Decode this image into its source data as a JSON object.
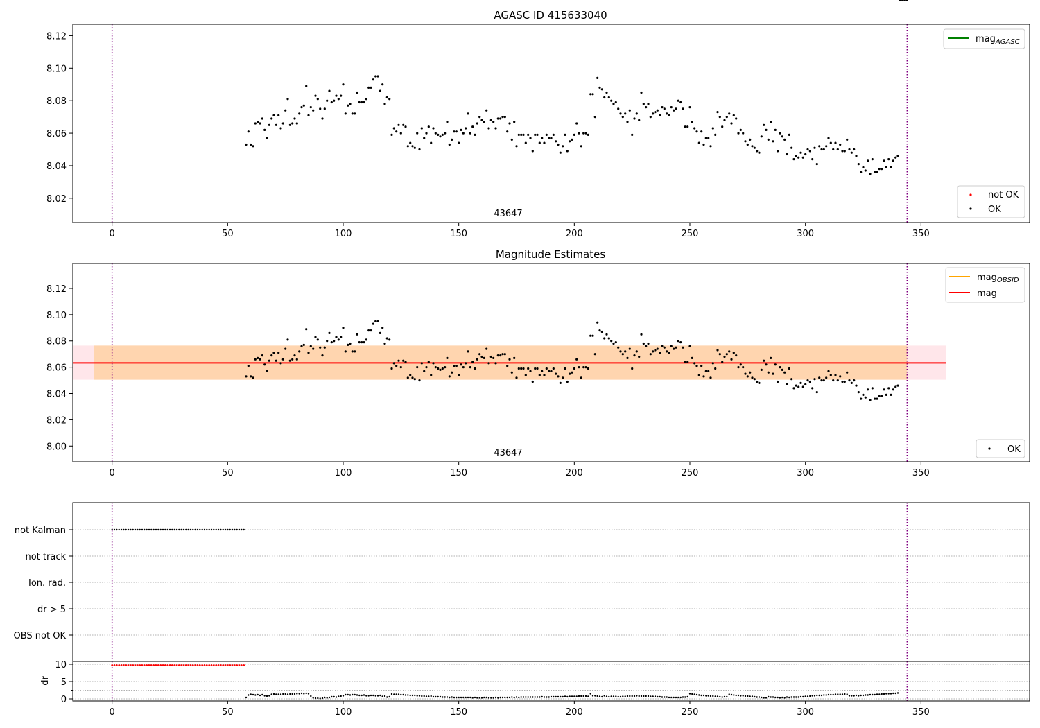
{
  "figure": {
    "background": "#ffffff"
  },
  "chart_data": [
    {
      "id": "top",
      "type": "scatter",
      "title": "AGASC ID 415633040",
      "obsid_label": "43647",
      "xlim": [
        -17,
        397
      ],
      "ylim": [
        8.005,
        8.127
      ],
      "x_ticks": [
        0,
        50,
        100,
        150,
        200,
        250,
        300,
        350
      ],
      "y_ticks": [
        8.02,
        8.04,
        8.06,
        8.08,
        8.1,
        8.12
      ],
      "y_tick_labels": [
        "8.02",
        "8.04",
        "8.06",
        "8.08",
        "8.10",
        "8.12"
      ],
      "vlines": [
        0,
        344
      ],
      "legend_upper": {
        "placement": "top-right",
        "entries": [
          {
            "label": "mag",
            "subscript": "AGASC",
            "color": "#008000",
            "kind": "line"
          }
        ]
      },
      "legend_lower": {
        "placement": "bottom-right",
        "entries": [
          {
            "label": "not OK",
            "color": "#ff0000",
            "kind": "dot"
          },
          {
            "label": "OK",
            "color": "#000000",
            "kind": "dot"
          }
        ]
      }
    },
    {
      "id": "middle",
      "type": "scatter",
      "title": "Magnitude Estimates",
      "obsid_label": "43647",
      "xlim": [
        -17,
        397
      ],
      "ylim": [
        7.988,
        8.139
      ],
      "x_ticks": [
        0,
        50,
        100,
        150,
        200,
        250,
        300,
        350
      ],
      "y_ticks": [
        8.0,
        8.02,
        8.04,
        8.06,
        8.08,
        8.1,
        8.12
      ],
      "y_tick_labels": [
        "8.00",
        "8.02",
        "8.04",
        "8.06",
        "8.08",
        "8.10",
        "8.12"
      ],
      "vlines": [
        0,
        344
      ],
      "mag_line": {
        "value": 8.0633,
        "x_range": [
          -17,
          361
        ],
        "color": "#ff0000"
      },
      "mag_band": {
        "low": 8.0505,
        "high": 8.0765,
        "x_range": [
          -17,
          361
        ],
        "color": "#ffc0cb"
      },
      "obsid_band": {
        "low": 8.0505,
        "high": 8.0765,
        "x_range": [
          -8,
          344
        ],
        "color": "#ffa500"
      },
      "legend_upper": {
        "placement": "top-right",
        "entries": [
          {
            "label": "mag",
            "subscript": "OBSID",
            "color": "#ffa500",
            "kind": "line"
          },
          {
            "label": "mag",
            "subscript": "",
            "color": "#ff0000",
            "kind": "line"
          }
        ]
      },
      "legend_lower": {
        "placement": "bottom-right",
        "entries": [
          {
            "label": "OK",
            "color": "#000000",
            "kind": "dot"
          }
        ]
      }
    },
    {
      "id": "flags",
      "type": "scatter",
      "xlim": [
        -17,
        397
      ],
      "categories": [
        "not Kalman",
        "not track",
        "Ion. rad.",
        "dr > 5",
        "OBS not OK"
      ],
      "vlines": [
        0,
        344
      ],
      "not_kalman_range": [
        0,
        57
      ],
      "point_spacing": 1
    },
    {
      "id": "dr",
      "type": "scatter",
      "xlim": [
        -17,
        397
      ],
      "ylim": [
        -0.6,
        10.8
      ],
      "ylabel": "dr",
      "x_ticks": [
        0,
        50,
        100,
        150,
        200,
        250,
        300,
        350
      ],
      "y_ticks": [
        0,
        5,
        10
      ],
      "y_tick_labels": [
        "0",
        "5",
        "10"
      ],
      "vlines": [
        0,
        344
      ],
      "capped_value": 9.7,
      "capped_range": [
        0,
        57
      ],
      "capped_color": "#ff0000"
    }
  ],
  "series": {
    "mag_x": [
      58,
      59,
      60,
      61,
      62,
      63,
      64,
      65,
      66,
      67,
      68,
      69,
      70,
      71,
      72,
      73,
      74,
      75,
      76,
      77,
      78,
      79,
      80,
      81,
      82,
      83,
      84,
      85,
      86,
      87,
      88,
      89,
      90,
      91,
      92,
      93,
      94,
      95,
      96,
      97,
      98,
      99,
      100,
      101,
      102,
      103,
      104,
      105,
      106,
      107,
      108,
      109,
      110,
      111,
      112,
      113,
      114,
      115,
      116,
      117,
      118,
      119,
      120,
      121,
      122,
      123,
      124,
      125,
      126,
      127,
      128,
      129,
      130,
      131,
      132,
      133,
      134,
      135,
      136,
      137,
      138,
      139,
      140,
      141,
      142,
      143,
      144,
      145,
      146,
      147,
      148,
      149,
      150,
      151,
      152,
      153,
      154,
      155,
      156,
      157,
      158,
      159,
      160,
      161,
      162,
      163,
      164,
      165,
      166,
      167,
      168,
      169,
      170,
      171,
      172,
      173,
      174,
      175,
      176,
      177,
      178,
      179,
      180,
      181,
      182,
      183,
      184,
      185,
      186,
      187,
      188,
      189,
      190,
      191,
      192,
      193,
      194,
      195,
      196,
      197,
      198,
      199,
      200,
      201,
      202,
      203,
      204,
      205,
      206,
      207,
      208,
      209,
      210,
      211,
      212,
      213,
      214,
      215,
      216,
      217,
      218,
      219,
      220,
      221,
      222,
      223,
      224,
      225,
      226,
      227,
      228,
      229,
      230,
      231,
      232,
      233,
      234,
      235,
      236,
      237,
      238,
      239,
      240,
      241,
      242,
      243,
      244,
      245,
      246,
      247,
      248,
      249,
      250,
      251,
      252,
      253,
      254,
      255,
      256,
      257,
      258,
      259,
      260,
      261,
      262,
      263,
      264,
      265,
      266,
      267,
      268,
      269,
      270,
      271,
      272,
      273,
      274,
      275,
      276,
      277,
      278,
      279,
      280,
      281,
      282,
      283,
      284,
      285,
      286,
      287,
      288,
      289,
      290,
      291,
      292,
      293,
      294,
      295,
      296,
      297,
      298,
      299,
      300,
      301,
      302,
      303,
      304,
      305,
      306,
      307,
      308,
      309,
      310,
      311,
      312,
      313,
      314,
      315,
      316,
      317,
      318,
      319,
      320,
      321,
      322,
      323,
      324,
      325,
      326,
      327,
      328,
      329,
      330,
      331,
      332,
      333,
      334,
      335,
      336,
      337,
      338,
      339,
      340,
      341,
      342,
      343,
      344
    ],
    "mag_y": [
      8.053,
      8.061,
      8.053,
      8.052,
      8.066,
      8.067,
      8.066,
      8.069,
      8.062,
      8.057,
      8.065,
      8.069,
      8.071,
      8.065,
      8.071,
      8.063,
      8.066,
      8.074,
      8.081,
      8.065,
      8.066,
      8.069,
      8.066,
      8.072,
      8.076,
      8.077,
      8.089,
      8.071,
      8.076,
      8.074,
      8.083,
      8.081,
      8.075,
      8.069,
      8.075,
      8.08,
      8.086,
      8.079,
      8.08,
      8.083,
      8.081,
      8.083,
      8.09,
      8.072,
      8.077,
      8.078,
      8.072,
      8.072,
      8.085,
      8.079,
      8.079,
      8.079,
      8.081,
      8.088,
      8.088,
      8.093,
      8.095,
      8.095,
      8.086,
      8.09,
      8.078,
      8.082,
      8.081,
      8.059,
      8.063,
      8.061,
      8.065,
      8.06,
      8.065,
      8.064,
      8.052,
      8.054,
      8.052,
      8.051,
      8.06,
      8.05,
      8.063,
      8.057,
      8.06,
      8.064,
      8.054,
      8.063,
      8.06,
      8.059,
      8.058,
      8.059,
      8.06,
      8.067,
      8.053,
      8.056,
      8.061,
      8.061,
      8.054,
      8.062,
      8.06,
      8.063,
      8.072,
      8.06,
      8.064,
      8.059,
      8.066,
      8.07,
      8.068,
      8.067,
      8.074,
      8.063,
      8.068,
      8.067,
      8.063,
      8.069,
      8.069,
      8.07,
      8.07,
      8.061,
      8.066,
      8.056,
      8.067,
      8.052,
      8.059,
      8.059,
      8.059,
      8.054,
      8.059,
      8.057,
      8.049,
      8.059,
      8.059,
      8.054,
      8.057,
      8.054,
      8.059,
      8.057,
      8.057,
      8.059,
      8.055,
      8.053,
      8.048,
      8.052,
      8.059,
      8.049,
      8.055,
      8.056,
      8.059,
      8.066,
      8.06,
      8.052,
      8.06,
      8.06,
      8.059,
      8.084,
      8.084,
      8.07,
      8.094,
      8.088,
      8.087,
      8.082,
      8.085,
      8.082,
      8.08,
      8.078,
      8.079,
      8.075,
      8.072,
      8.07,
      8.072,
      8.067,
      8.074,
      8.059,
      8.069,
      8.072,
      8.068,
      8.085,
      8.078,
      8.076,
      8.078,
      8.07,
      8.072,
      8.073,
      8.074,
      8.071,
      8.076,
      8.075,
      8.072,
      8.071,
      8.076,
      8.074,
      8.075,
      8.08,
      8.079,
      8.075,
      8.064,
      8.064,
      8.076,
      8.067,
      8.063,
      8.061,
      8.054,
      8.061,
      8.053,
      8.057,
      8.057,
      8.052,
      8.063,
      8.059,
      8.073,
      8.07,
      8.064,
      8.068,
      8.07,
      8.072,
      8.066,
      8.071,
      8.069,
      8.06,
      8.062,
      8.06,
      8.055,
      8.053,
      8.056,
      8.052,
      8.051,
      8.049,
      8.048,
      8.058,
      8.065,
      8.062,
      8.056,
      8.067,
      8.055,
      8.062,
      8.049,
      8.06,
      8.058,
      8.056,
      8.047,
      8.059,
      8.051,
      8.044,
      8.046,
      8.045,
      8.048,
      8.045,
      8.047,
      8.05,
      8.049,
      8.044,
      8.051,
      8.041,
      8.052,
      8.05,
      8.05,
      8.052,
      8.057,
      8.054,
      8.05,
      8.054,
      8.05,
      8.053,
      8.049,
      8.049,
      8.056,
      8.05,
      8.048,
      8.05,
      8.046,
      8.041,
      8.036,
      8.039,
      8.037,
      8.043,
      8.035,
      8.044,
      8.036,
      8.036,
      8.038,
      8.038,
      8.043,
      8.039,
      8.044,
      8.039,
      8.043,
      8.045,
      8.046
    ],
    "dr_x": [
      58,
      59,
      60,
      61,
      62,
      63,
      64,
      65,
      66,
      67,
      68,
      69,
      70,
      71,
      72,
      73,
      74,
      75,
      76,
      77,
      78,
      79,
      80,
      81,
      82,
      83,
      84,
      85,
      86,
      87,
      88,
      89,
      90,
      91,
      92,
      93,
      94,
      95,
      96,
      97,
      98,
      99,
      100,
      101,
      102,
      103,
      104,
      105,
      106,
      107,
      108,
      109,
      110,
      111,
      112,
      113,
      114,
      115,
      116,
      117,
      118,
      119,
      120,
      121,
      122,
      123,
      124,
      125,
      126,
      127,
      128,
      129,
      130,
      131,
      132,
      133,
      134,
      135,
      136,
      137,
      138,
      139,
      140,
      141,
      142,
      143,
      144,
      145,
      146,
      147,
      148,
      149,
      150,
      151,
      152,
      153,
      154,
      155,
      156,
      157,
      158,
      159,
      160,
      161,
      162,
      163,
      164,
      165,
      166,
      167,
      168,
      169,
      170,
      171,
      172,
      173,
      174,
      175,
      176,
      177,
      178,
      179,
      180,
      181,
      182,
      183,
      184,
      185,
      186,
      187,
      188,
      189,
      190,
      191,
      192,
      193,
      194,
      195,
      196,
      197,
      198,
      199,
      200,
      201,
      202,
      203,
      204,
      205,
      206,
      207,
      208,
      209,
      210,
      211,
      212,
      213,
      214,
      215,
      216,
      217,
      218,
      219,
      220,
      221,
      222,
      223,
      224,
      225,
      226,
      227,
      228,
      229,
      230,
      231,
      232,
      233,
      234,
      235,
      236,
      237,
      238,
      239,
      240,
      241,
      242,
      243,
      244,
      245,
      246,
      247,
      248,
      249,
      250,
      251,
      252,
      253,
      254,
      255,
      256,
      257,
      258,
      259,
      260,
      261,
      262,
      263,
      264,
      265,
      266,
      267,
      268,
      269,
      270,
      271,
      272,
      273,
      274,
      275,
      276,
      277,
      278,
      279,
      280,
      281,
      282,
      283,
      284,
      285,
      286,
      287,
      288,
      289,
      290,
      291,
      292,
      293,
      294,
      295,
      296,
      297,
      298,
      299,
      300,
      301,
      302,
      303,
      304,
      305,
      306,
      307,
      308,
      309,
      310,
      311,
      312,
      313,
      314,
      315,
      316,
      317,
      318,
      319,
      320,
      321,
      322,
      323,
      324,
      325,
      326,
      327,
      328,
      329,
      330,
      331,
      332,
      333,
      334,
      335,
      336,
      337,
      338,
      339,
      340,
      341,
      342,
      343,
      344
    ],
    "dr_y": [
      0.4,
      1.1,
      1.3,
      1.2,
      1.1,
      1.2,
      1.0,
      1.2,
      0.9,
      0.8,
      0.9,
      1.3,
      1.4,
      1.3,
      1.3,
      1.3,
      1.4,
      1.4,
      1.3,
      1.4,
      1.4,
      1.4,
      1.5,
      1.5,
      1.6,
      1.5,
      1.6,
      1.5,
      0.8,
      0.3,
      0.2,
      0.2,
      0.1,
      0.2,
      0.4,
      0.3,
      0.4,
      0.6,
      0.6,
      0.5,
      0.7,
      0.8,
      0.9,
      1.2,
      1.2,
      1.1,
      1.2,
      1.2,
      1.1,
      1.0,
      1.0,
      1.1,
      0.9,
      0.9,
      1.0,
      1.0,
      0.9,
      0.9,
      1.0,
      0.7,
      0.8,
      0.5,
      0.6,
      1.4,
      1.3,
      1.3,
      1.3,
      1.2,
      1.2,
      1.1,
      1.1,
      1.0,
      1.0,
      1.0,
      0.9,
      0.9,
      0.8,
      0.8,
      0.7,
      0.7,
      0.8,
      0.6,
      0.6,
      0.6,
      0.6,
      0.5,
      0.5,
      0.5,
      0.4,
      0.5,
      0.4,
      0.4,
      0.4,
      0.4,
      0.4,
      0.4,
      0.4,
      0.4,
      0.3,
      0.4,
      0.3,
      0.3,
      0.3,
      0.4,
      0.4,
      0.3,
      0.3,
      0.3,
      0.4,
      0.3,
      0.4,
      0.4,
      0.4,
      0.4,
      0.4,
      0.5,
      0.4,
      0.5,
      0.4,
      0.5,
      0.5,
      0.5,
      0.5,
      0.5,
      0.5,
      0.5,
      0.5,
      0.5,
      0.6,
      0.5,
      0.5,
      0.5,
      0.6,
      0.6,
      0.6,
      0.6,
      0.6,
      0.6,
      0.7,
      0.6,
      0.7,
      0.7,
      0.7,
      0.7,
      0.8,
      0.8,
      0.8,
      0.8,
      0.7,
      1.5,
      0.9,
      0.9,
      0.8,
      0.7,
      0.6,
      0.9,
      0.7,
      0.6,
      0.7,
      0.7,
      0.7,
      0.6,
      0.6,
      0.7,
      0.7,
      0.8,
      0.8,
      0.8,
      0.8,
      0.9,
      0.8,
      0.8,
      0.8,
      0.8,
      0.8,
      0.7,
      0.7,
      0.7,
      0.6,
      0.6,
      0.5,
      0.5,
      0.5,
      0.4,
      0.4,
      0.4,
      0.4,
      0.4,
      0.4,
      0.5,
      0.5,
      0.6,
      1.5,
      1.4,
      1.3,
      1.2,
      1.1,
      1.0,
      1.0,
      0.9,
      0.9,
      0.8,
      0.8,
      0.7,
      0.7,
      0.6,
      0.5,
      0.6,
      0.6,
      1.3,
      1.2,
      1.1,
      1.0,
      1.0,
      0.9,
      0.9,
      0.8,
      0.8,
      0.7,
      0.7,
      0.6,
      0.5,
      0.5,
      0.4,
      0.3,
      0.3,
      0.6,
      0.5,
      0.5,
      0.4,
      0.4,
      0.3,
      0.4,
      0.3,
      0.5,
      0.4,
      0.5,
      0.5,
      0.5,
      0.5,
      0.6,
      0.6,
      0.7,
      0.7,
      0.8,
      0.9,
      0.9,
      1.0,
      1.0,
      1.0,
      1.1,
      1.1,
      1.2,
      1.2,
      1.2,
      1.3,
      1.3,
      1.3,
      1.3,
      1.4,
      1.3,
      0.9,
      0.9,
      0.9,
      1.0,
      0.9,
      1.0,
      1.0,
      1.1,
      1.1,
      1.2,
      1.2,
      1.2,
      1.3,
      1.3,
      1.4,
      1.4,
      1.5,
      1.5,
      1.5,
      1.6,
      1.6,
      1.7
    ]
  }
}
